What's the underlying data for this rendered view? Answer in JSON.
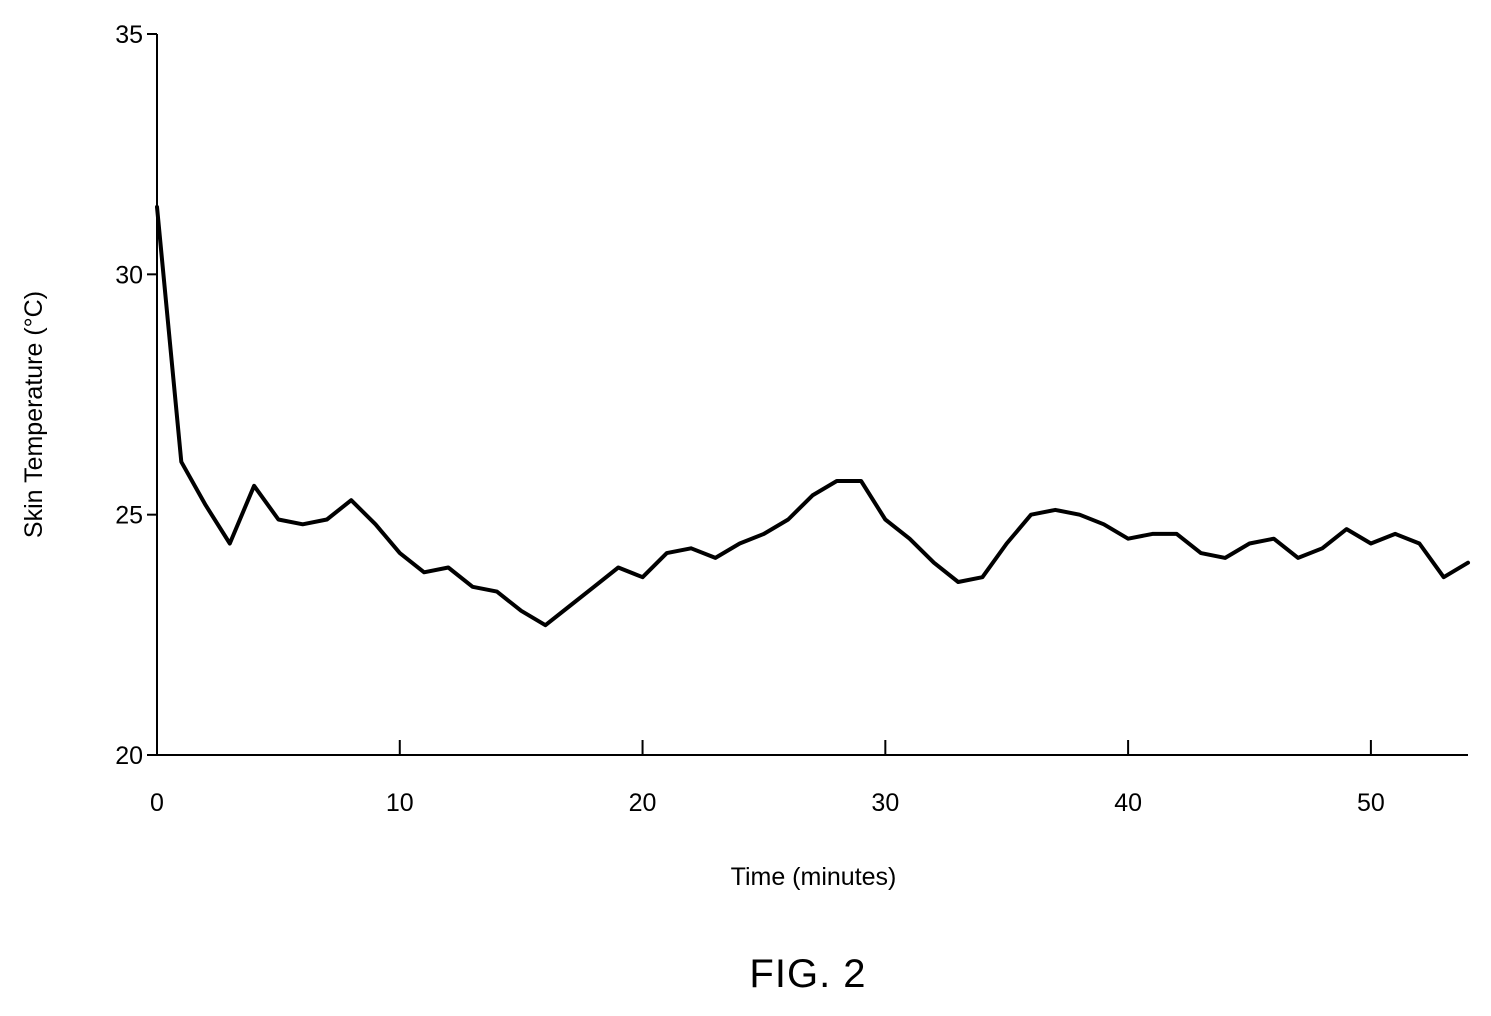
{
  "figure": {
    "caption": "FIG. 2"
  },
  "chart_data": {
    "type": "line",
    "title": "",
    "xlabel": "Time (minutes)",
    "ylabel": "Skin Temperature (°C)",
    "xlim": [
      0,
      54
    ],
    "ylim": [
      20,
      35
    ],
    "x_ticks": [
      0,
      10,
      20,
      30,
      40,
      50
    ],
    "y_ticks": [
      20,
      25,
      30,
      35
    ],
    "grid": false,
    "legend": "none",
    "series": [
      {
        "color": "#000000",
        "x": [
          0,
          1,
          2,
          3,
          4,
          5,
          6,
          7,
          8,
          9,
          10,
          11,
          12,
          13,
          14,
          15,
          16,
          17,
          18,
          19,
          20,
          21,
          22,
          23,
          24,
          25,
          26,
          27,
          28,
          29,
          30,
          31,
          32,
          33,
          34,
          35,
          36,
          37,
          38,
          39,
          40,
          41,
          42,
          43,
          44,
          45,
          46,
          47,
          48,
          49,
          50,
          51,
          52,
          53,
          54
        ],
        "y": [
          31.4,
          26.1,
          25.2,
          24.4,
          25.6,
          24.9,
          24.8,
          24.9,
          25.3,
          24.8,
          24.2,
          23.8,
          23.9,
          23.5,
          23.4,
          23.0,
          22.7,
          23.1,
          23.5,
          23.9,
          23.7,
          24.2,
          24.3,
          24.1,
          24.4,
          24.6,
          24.9,
          25.4,
          25.7,
          25.7,
          24.9,
          24.5,
          24.0,
          23.6,
          23.7,
          24.4,
          25.0,
          25.1,
          25.0,
          24.8,
          24.5,
          24.6,
          24.6,
          24.2,
          24.1,
          24.4,
          24.5,
          24.1,
          24.3,
          24.7,
          24.4,
          24.6,
          24.4,
          23.7,
          24.0
        ]
      }
    ]
  }
}
